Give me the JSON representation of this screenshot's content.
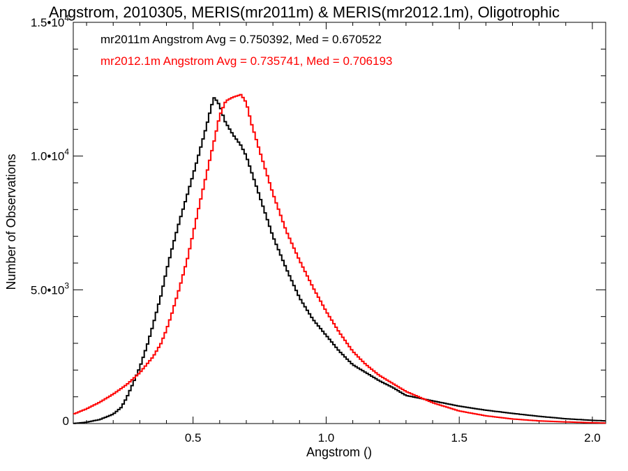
{
  "chart_data": {
    "type": "line",
    "style": "step-histogram",
    "title": "Angstrom, 2010305, MERIS(mr2011m) & MERIS(mr2012.1m), Oligotrophic",
    "xlabel": "Angstrom ()",
    "ylabel": "Number of Observations",
    "xlim": [
      0.05,
      2.05
    ],
    "ylim": [
      0,
      15000
    ],
    "x_ticks": [
      {
        "value": 0.5,
        "label": "0.5"
      },
      {
        "value": 1.0,
        "label": "1.0"
      },
      {
        "value": 1.5,
        "label": "1.5"
      },
      {
        "value": 2.0,
        "label": "2.0"
      }
    ],
    "y_ticks": [
      {
        "value": 0,
        "mantissa": "0",
        "exp": ""
      },
      {
        "value": 5000,
        "mantissa": "5.0•10",
        "exp": "3"
      },
      {
        "value": 10000,
        "mantissa": "1.0•10",
        "exp": "4"
      },
      {
        "value": 15000,
        "mantissa": "1.5•10",
        "exp": "4"
      }
    ],
    "grid": false,
    "annotations": [
      {
        "text": "mr2011m Angstrom Avg = 0.750392, Med = 0.670522",
        "color": "#000000"
      },
      {
        "text": "mr2012.1m Angstrom Avg = 0.735741, Med = 0.706193",
        "color": "#ff0000"
      }
    ],
    "series": [
      {
        "color": "#000000",
        "x": [
          0.05,
          0.1,
          0.15,
          0.2,
          0.23,
          0.25,
          0.27,
          0.3,
          0.33,
          0.35,
          0.38,
          0.4,
          0.42,
          0.45,
          0.48,
          0.5,
          0.52,
          0.55,
          0.57,
          0.58,
          0.6,
          0.62,
          0.65,
          0.68,
          0.7,
          0.72,
          0.75,
          0.8,
          0.85,
          0.9,
          0.95,
          1.0,
          1.05,
          1.1,
          1.15,
          1.2,
          1.25,
          1.3,
          1.4,
          1.5,
          1.6,
          1.7,
          1.8,
          1.9,
          2.0,
          2.05
        ],
        "values": [
          0,
          50,
          150,
          350,
          600,
          950,
          1400,
          2100,
          3000,
          3700,
          4800,
          5700,
          6500,
          7600,
          8600,
          9300,
          10000,
          11100,
          11900,
          12200,
          11900,
          11300,
          10800,
          10400,
          10000,
          9400,
          8500,
          7000,
          5800,
          4700,
          3900,
          3300,
          2700,
          2200,
          1900,
          1600,
          1350,
          1050,
          850,
          650,
          500,
          380,
          270,
          180,
          120,
          100
        ]
      },
      {
        "color": "#ff0000",
        "x": [
          0.05,
          0.1,
          0.15,
          0.2,
          0.25,
          0.3,
          0.35,
          0.38,
          0.4,
          0.42,
          0.45,
          0.48,
          0.5,
          0.52,
          0.55,
          0.58,
          0.6,
          0.62,
          0.63,
          0.65,
          0.68,
          0.7,
          0.72,
          0.75,
          0.8,
          0.85,
          0.9,
          0.95,
          1.0,
          1.05,
          1.1,
          1.15,
          1.2,
          1.25,
          1.3,
          1.4,
          1.5,
          1.6,
          1.7,
          1.8,
          1.9,
          2.0,
          2.05
        ],
        "values": [
          350,
          550,
          800,
          1100,
          1450,
          1900,
          2500,
          3000,
          3500,
          4100,
          5100,
          6200,
          7100,
          8000,
          9300,
          10600,
          11500,
          12000,
          12100,
          12200,
          12300,
          12000,
          11200,
          10200,
          8600,
          7200,
          6100,
          5100,
          4200,
          3400,
          2700,
          2200,
          1800,
          1500,
          1200,
          780,
          470,
          290,
          170,
          100,
          60,
          30,
          20
        ]
      }
    ]
  }
}
